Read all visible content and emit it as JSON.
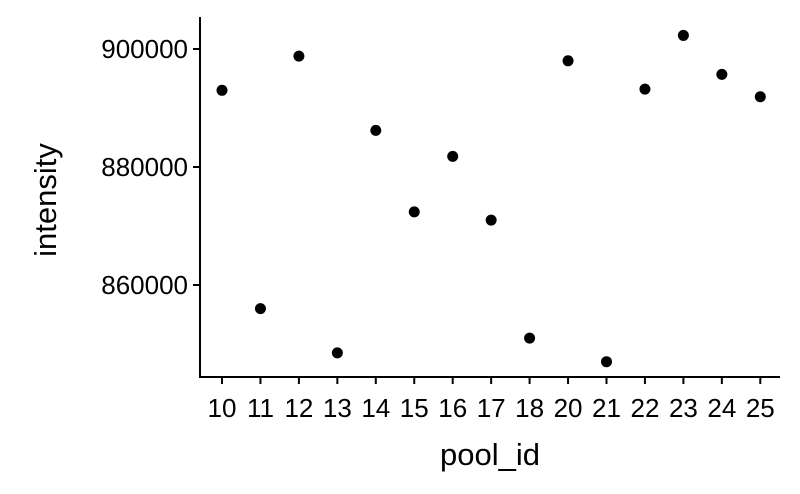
{
  "chart_data": {
    "type": "scatter",
    "title": "",
    "xlabel": "pool_id",
    "ylabel": "intensity",
    "categories": [
      "10",
      "11",
      "12",
      "13",
      "14",
      "15",
      "16",
      "17",
      "18",
      "20",
      "21",
      "22",
      "23",
      "24",
      "25"
    ],
    "series": [
      {
        "values": [
          893000,
          856000,
          898800,
          848500,
          886200,
          872400,
          881800,
          871000,
          851000,
          898000,
          847000,
          893200,
          902300,
          895700,
          891900
        ]
      }
    ],
    "y_ticks": [
      860000,
      880000,
      900000
    ],
    "y_tick_labels": [
      "860000",
      "880000",
      "900000"
    ],
    "ylim": [
      844000,
      905000
    ],
    "grid": false,
    "legend": "none",
    "colors": {
      "point": "#000000",
      "axis": "#000000",
      "background": "#ffffff"
    }
  }
}
